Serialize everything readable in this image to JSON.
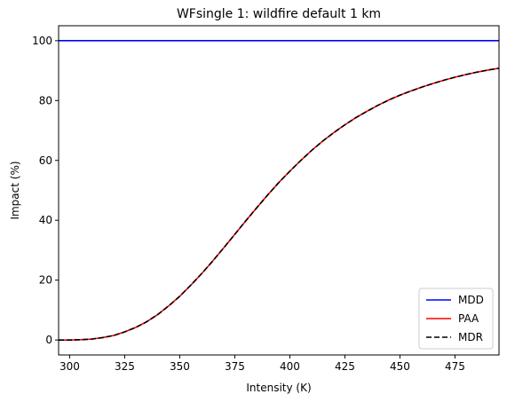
{
  "chart_data": {
    "type": "line",
    "title": "WFsingle 1: wildfire default 1 km",
    "xlabel": "Intensity (K)",
    "ylabel": "Impact (%)",
    "xlim": [
      295,
      495
    ],
    "ylim": [
      -5,
      105
    ],
    "xticks": [
      300,
      325,
      350,
      375,
      400,
      425,
      450,
      475
    ],
    "yticks": [
      0,
      20,
      40,
      60,
      80,
      100
    ],
    "grid": false,
    "legend_position": "lower-right",
    "series": [
      {
        "name": "MDD",
        "color": "#0000ff",
        "dash": "solid",
        "x": [
          295,
          495
        ],
        "y": [
          100,
          100
        ]
      },
      {
        "name": "PAA",
        "color": "#ff0000",
        "dash": "solid",
        "x": [
          295,
          300,
          305,
          310,
          315,
          320,
          325,
          330,
          335,
          340,
          345,
          350,
          355,
          360,
          365,
          370,
          375,
          380,
          385,
          390,
          395,
          400,
          405,
          410,
          415,
          420,
          425,
          430,
          435,
          440,
          445,
          450,
          455,
          460,
          465,
          470,
          475,
          480,
          485,
          490,
          495
        ],
        "y": [
          0,
          0,
          0.1,
          0.3,
          0.8,
          1.5,
          2.7,
          4.2,
          6.1,
          8.5,
          11.4,
          14.6,
          18.3,
          22.2,
          26.4,
          30.8,
          35.3,
          39.8,
          44.2,
          48.5,
          52.6,
          56.4,
          60.0,
          63.4,
          66.5,
          69.3,
          71.9,
          74.3,
          76.4,
          78.4,
          80.2,
          81.8,
          83.2,
          84.5,
          85.7,
          86.8,
          87.8,
          88.7,
          89.5,
          90.2,
          90.8
        ]
      },
      {
        "name": "MDR",
        "color": "#000000",
        "dash": "dashed",
        "x": [
          295,
          300,
          305,
          310,
          315,
          320,
          325,
          330,
          335,
          340,
          345,
          350,
          355,
          360,
          365,
          370,
          375,
          380,
          385,
          390,
          395,
          400,
          405,
          410,
          415,
          420,
          425,
          430,
          435,
          440,
          445,
          450,
          455,
          460,
          465,
          470,
          475,
          480,
          485,
          490,
          495
        ],
        "y": [
          0,
          0,
          0.1,
          0.3,
          0.8,
          1.5,
          2.7,
          4.2,
          6.1,
          8.5,
          11.4,
          14.6,
          18.3,
          22.2,
          26.4,
          30.8,
          35.3,
          39.8,
          44.2,
          48.5,
          52.6,
          56.4,
          60.0,
          63.4,
          66.5,
          69.3,
          71.9,
          74.3,
          76.4,
          78.4,
          80.2,
          81.8,
          83.2,
          84.5,
          85.7,
          86.8,
          87.8,
          88.7,
          89.5,
          90.2,
          90.8
        ]
      }
    ]
  }
}
